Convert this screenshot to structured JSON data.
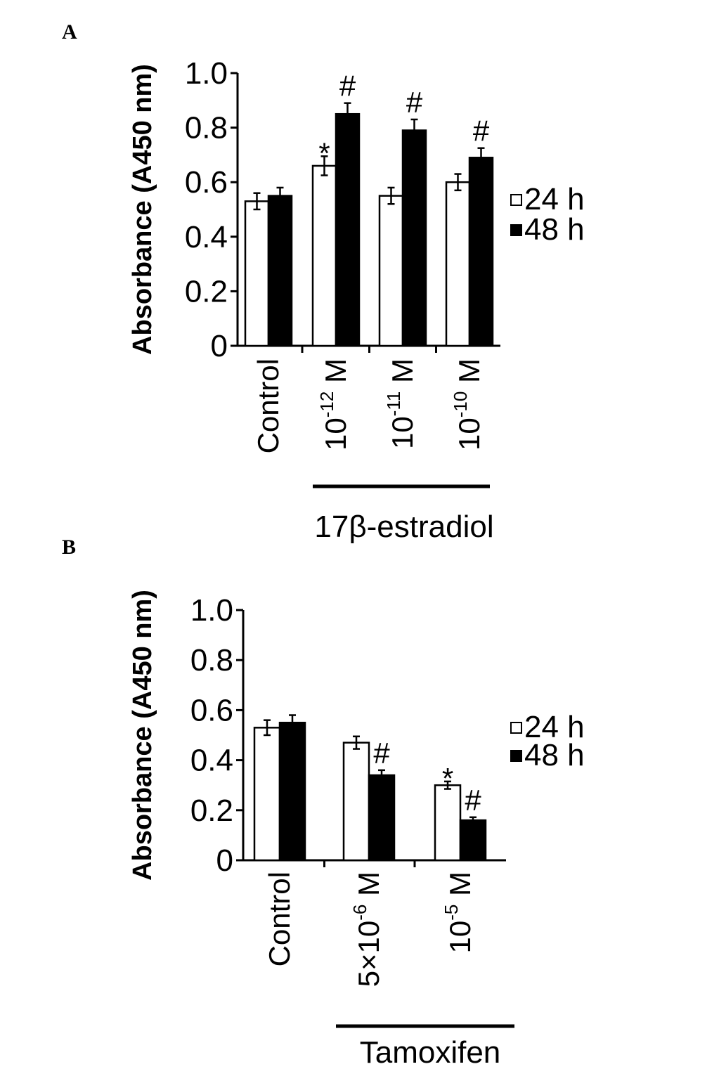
{
  "chart_data": [
    {
      "type": "bar",
      "panel": "A",
      "ylabel": "Absorbance (A450 nm)",
      "ylim": [
        0,
        1.0
      ],
      "yticks": [
        "0",
        "0.2",
        "0.4",
        "0.6",
        "0.8",
        "1.0"
      ],
      "categories": [
        {
          "label": "Control"
        },
        {
          "label": "10",
          "sup": "-12",
          "unit": " M"
        },
        {
          "label": "10",
          "sup": "-11",
          "unit": " M"
        },
        {
          "label": "10",
          "sup": "-10",
          "unit": " M"
        }
      ],
      "group_label": "17β-estradiol",
      "series": [
        {
          "name": "24 h",
          "color": "#ffffff",
          "values": [
            0.53,
            0.66,
            0.55,
            0.6
          ],
          "errors": [
            0.03,
            0.035,
            0.03,
            0.03
          ],
          "marks": [
            "",
            "*",
            "",
            ""
          ]
        },
        {
          "name": "48 h",
          "color": "#000000",
          "values": [
            0.55,
            0.85,
            0.79,
            0.69
          ],
          "errors": [
            0.03,
            0.04,
            0.04,
            0.035
          ],
          "marks": [
            "",
            "#",
            "#",
            "#"
          ]
        }
      ],
      "legend_placement": "right"
    },
    {
      "type": "bar",
      "panel": "B",
      "ylabel": "Absorbance (A450 nm)",
      "ylim": [
        0,
        1.0
      ],
      "yticks": [
        "0",
        "0.2",
        "0.4",
        "0.6",
        "0.8",
        "1.0"
      ],
      "categories": [
        {
          "label": "Control"
        },
        {
          "label": "5×10",
          "sup": "-6",
          "unit": " M"
        },
        {
          "label": "10",
          "sup": "-5",
          "unit": " M"
        }
      ],
      "group_label": "Tamoxifen",
      "series": [
        {
          "name": "24 h",
          "color": "#ffffff",
          "values": [
            0.53,
            0.47,
            0.3
          ],
          "errors": [
            0.03,
            0.025,
            0.015
          ],
          "marks": [
            "",
            "",
            "*"
          ]
        },
        {
          "name": "48 h",
          "color": "#000000",
          "values": [
            0.55,
            0.34,
            0.16
          ],
          "errors": [
            0.03,
            0.02,
            0.012
          ],
          "marks": [
            "",
            "#",
            "#"
          ]
        }
      ],
      "legend_placement": "right"
    }
  ]
}
